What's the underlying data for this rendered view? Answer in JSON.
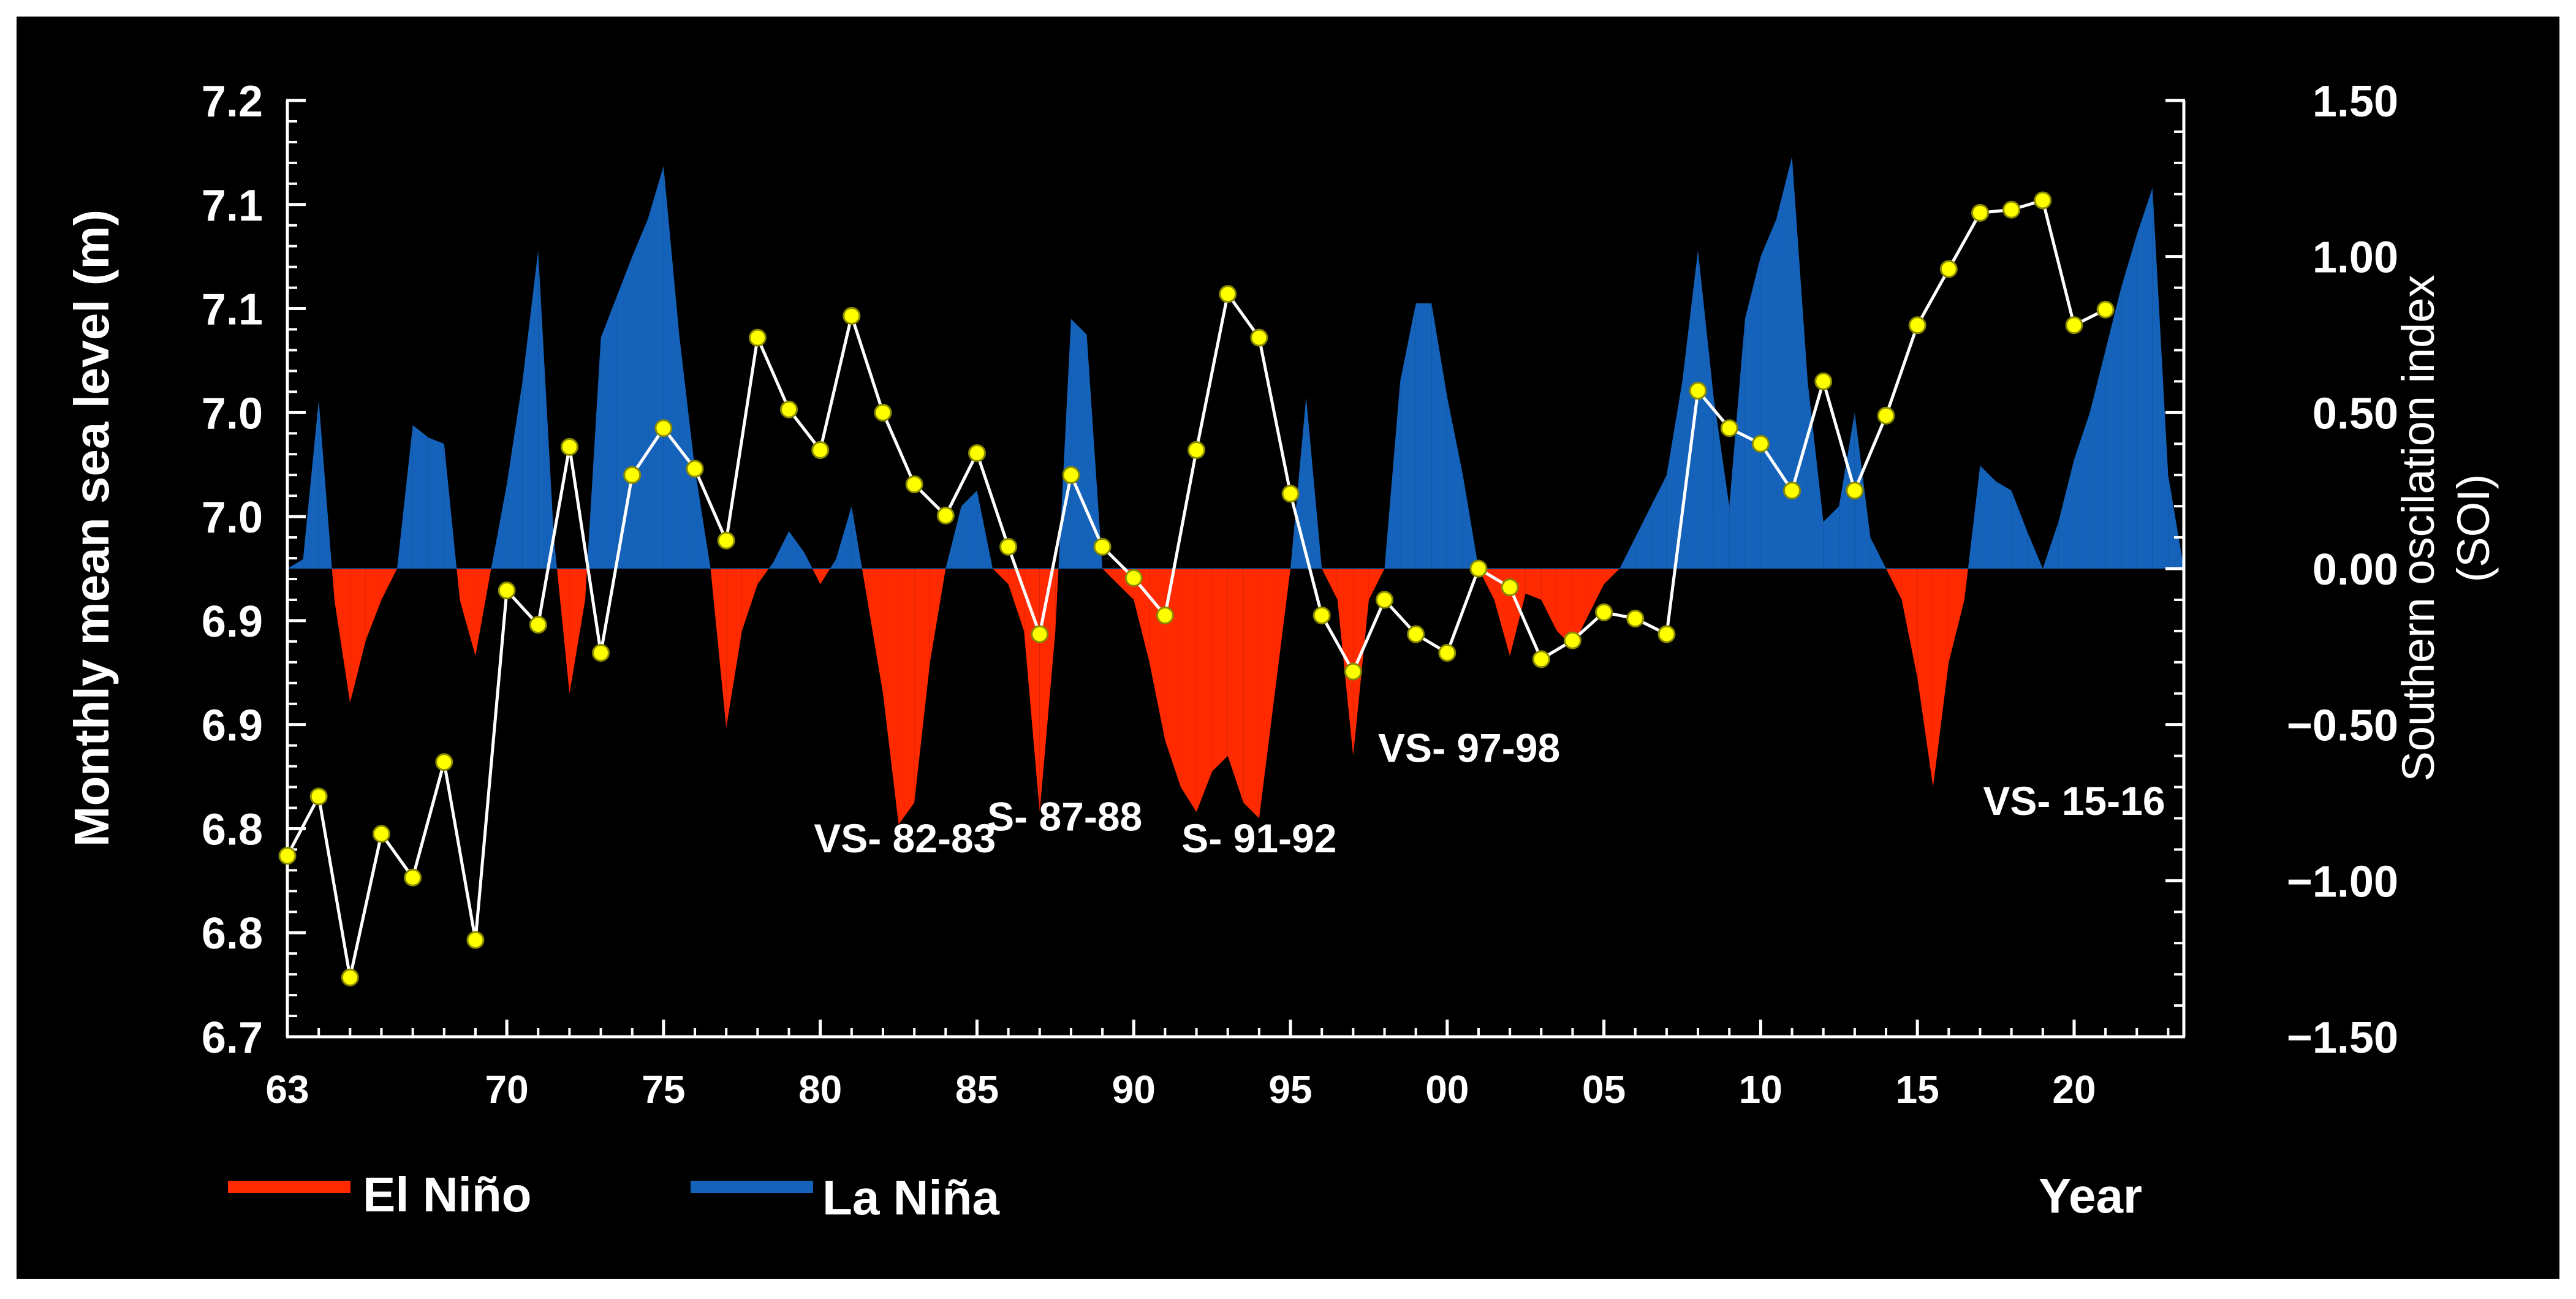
{
  "chart_data": {
    "type": "line+area",
    "title": "",
    "left_axis": {
      "label": "Monthly  mean sea level  (m)",
      "tick_labels": [
        "7.2",
        "7.1",
        "7.1",
        "7.0",
        "7.0",
        "6.9",
        "6.9",
        "6.8",
        "6.8",
        "6.7"
      ]
    },
    "right_axis": {
      "label_lines": [
        "Southern oscilation index",
        "(SOI)"
      ],
      "tick_labels": [
        "1.50",
        "1.00",
        "0.50",
        "0.00",
        "−0.50",
        "−1.00",
        "−1.50"
      ],
      "range": [
        -1.5,
        1.5
      ]
    },
    "x_axis": {
      "label": "Year",
      "range": [
        1963,
        2023.5
      ],
      "ticks": [
        {
          "year": 1963,
          "label": "63"
        },
        {
          "year": 1970,
          "label": "70"
        },
        {
          "year": 1975,
          "label": "75"
        },
        {
          "year": 1980,
          "label": "80"
        },
        {
          "year": 1985,
          "label": "85"
        },
        {
          "year": 1990,
          "label": "90"
        },
        {
          "year": 1995,
          "label": "95"
        },
        {
          "year": 2000,
          "label": "00"
        },
        {
          "year": 2005,
          "label": "05"
        },
        {
          "year": 2010,
          "label": "10"
        },
        {
          "year": 2015,
          "label": "15"
        },
        {
          "year": 2020,
          "label": "20"
        }
      ]
    },
    "sea_level_series": {
      "name": "Monthly mean sea level",
      "units": "SOI-scaled position",
      "points": [
        [
          1963,
          -0.92
        ],
        [
          1964,
          -0.73
        ],
        [
          1965,
          -1.31
        ],
        [
          1966,
          -0.85
        ],
        [
          1967,
          -0.99
        ],
        [
          1968,
          -0.62
        ],
        [
          1969,
          -1.19
        ],
        [
          1970,
          -0.07
        ],
        [
          1971,
          -0.18
        ],
        [
          1972,
          0.39
        ],
        [
          1973,
          -0.27
        ],
        [
          1974,
          0.3
        ],
        [
          1975,
          0.45
        ],
        [
          1976,
          0.32
        ],
        [
          1977,
          0.09
        ],
        [
          1978,
          0.74
        ],
        [
          1979,
          0.51
        ],
        [
          1980,
          0.38
        ],
        [
          1981,
          0.81
        ],
        [
          1982,
          0.5
        ],
        [
          1983,
          0.27
        ],
        [
          1984,
          0.17
        ],
        [
          1985,
          0.37
        ],
        [
          1986,
          0.07
        ],
        [
          1987,
          -0.21
        ],
        [
          1988,
          0.3
        ],
        [
          1989,
          0.07
        ],
        [
          1990,
          -0.03
        ],
        [
          1991,
          -0.15
        ],
        [
          1992,
          0.38
        ],
        [
          1993,
          0.88
        ],
        [
          1994,
          0.74
        ],
        [
          1995,
          0.24
        ],
        [
          1996,
          -0.15
        ],
        [
          1997,
          -0.33
        ],
        [
          1998,
          -0.1
        ],
        [
          1999,
          -0.21
        ],
        [
          2000,
          -0.27
        ],
        [
          2001,
          0.0
        ],
        [
          2002,
          -0.06
        ],
        [
          2003,
          -0.29
        ],
        [
          2004,
          -0.23
        ],
        [
          2005,
          -0.14
        ],
        [
          2006,
          -0.16
        ],
        [
          2007,
          -0.21
        ],
        [
          2008,
          0.57
        ],
        [
          2009,
          0.45
        ],
        [
          2010,
          0.4
        ],
        [
          2011,
          0.25
        ],
        [
          2012,
          0.6
        ],
        [
          2013,
          0.25
        ],
        [
          2014,
          0.49
        ],
        [
          2015,
          0.78
        ],
        [
          2016,
          0.96
        ],
        [
          2017,
          1.14
        ],
        [
          2018,
          1.15
        ],
        [
          2019,
          1.18
        ],
        [
          2020,
          0.78
        ],
        [
          2021,
          0.83
        ]
      ]
    },
    "soi_series": {
      "name": "SOI",
      "points": [
        [
          1963.0,
          0.0
        ],
        [
          1963.5,
          0.03
        ],
        [
          1964.0,
          0.54
        ],
        [
          1964.5,
          -0.1
        ],
        [
          1965.0,
          -0.43
        ],
        [
          1965.5,
          -0.23
        ],
        [
          1966.0,
          -0.1
        ],
        [
          1966.5,
          0.0
        ],
        [
          1967.0,
          0.46
        ],
        [
          1967.5,
          0.42
        ],
        [
          1968.0,
          0.4
        ],
        [
          1968.5,
          -0.1
        ],
        [
          1969.0,
          -0.28
        ],
        [
          1969.5,
          0.0
        ],
        [
          1970.0,
          0.27
        ],
        [
          1970.5,
          0.6
        ],
        [
          1971.0,
          1.02
        ],
        [
          1971.5,
          0.1
        ],
        [
          1972.0,
          -0.4
        ],
        [
          1972.5,
          -0.1
        ],
        [
          1973.0,
          0.74
        ],
        [
          1973.5,
          0.87
        ],
        [
          1974.0,
          1.0
        ],
        [
          1974.5,
          1.12
        ],
        [
          1975.0,
          1.29
        ],
        [
          1975.5,
          0.75
        ],
        [
          1976.0,
          0.32
        ],
        [
          1976.5,
          0.0
        ],
        [
          1977.0,
          -0.51
        ],
        [
          1977.5,
          -0.2
        ],
        [
          1978.0,
          -0.05
        ],
        [
          1978.5,
          0.02
        ],
        [
          1979.0,
          0.12
        ],
        [
          1979.5,
          0.05
        ],
        [
          1980.0,
          -0.05
        ],
        [
          1980.5,
          0.03
        ],
        [
          1981.0,
          0.2
        ],
        [
          1981.5,
          -0.1
        ],
        [
          1982.0,
          -0.4
        ],
        [
          1982.5,
          -0.82
        ],
        [
          1983.0,
          -0.75
        ],
        [
          1983.5,
          -0.3
        ],
        [
          1984.0,
          0.0
        ],
        [
          1984.5,
          0.2
        ],
        [
          1985.0,
          0.25
        ],
        [
          1985.5,
          0.0
        ],
        [
          1986.0,
          -0.05
        ],
        [
          1986.5,
          -0.2
        ],
        [
          1987.0,
          -0.78
        ],
        [
          1987.5,
          -0.2
        ],
        [
          1988.0,
          0.8
        ],
        [
          1988.5,
          0.75
        ],
        [
          1989.0,
          0.0
        ],
        [
          1989.5,
          -0.05
        ],
        [
          1990.0,
          -0.1
        ],
        [
          1990.5,
          -0.3
        ],
        [
          1991.0,
          -0.55
        ],
        [
          1991.5,
          -0.7
        ],
        [
          1992.0,
          -0.78
        ],
        [
          1992.5,
          -0.65
        ],
        [
          1993.0,
          -0.6
        ],
        [
          1993.5,
          -0.75
        ],
        [
          1994.0,
          -0.8
        ],
        [
          1994.5,
          -0.4
        ],
        [
          1995.0,
          0.0
        ],
        [
          1995.5,
          0.55
        ],
        [
          1996.0,
          0.0
        ],
        [
          1996.5,
          -0.1
        ],
        [
          1997.0,
          -0.6
        ],
        [
          1997.5,
          -0.1
        ],
        [
          1998.0,
          0.0
        ],
        [
          1998.5,
          0.6
        ],
        [
          1999.0,
          0.85
        ],
        [
          1999.5,
          0.85
        ],
        [
          2000.0,
          0.55
        ],
        [
          2000.5,
          0.3
        ],
        [
          2001.0,
          0.0
        ],
        [
          2001.5,
          -0.1
        ],
        [
          2002.0,
          -0.28
        ],
        [
          2002.5,
          -0.08
        ],
        [
          2003.0,
          -0.1
        ],
        [
          2003.5,
          -0.2
        ],
        [
          2004.0,
          -0.25
        ],
        [
          2004.5,
          -0.15
        ],
        [
          2005.0,
          -0.05
        ],
        [
          2005.5,
          0.0
        ],
        [
          2006.0,
          0.1
        ],
        [
          2006.5,
          0.2
        ],
        [
          2007.0,
          0.3
        ],
        [
          2007.5,
          0.6
        ],
        [
          2008.0,
          1.02
        ],
        [
          2008.5,
          0.55
        ],
        [
          2009.0,
          0.2
        ],
        [
          2009.5,
          0.8
        ],
        [
          2010.0,
          1.0
        ],
        [
          2010.5,
          1.12
        ],
        [
          2011.0,
          1.32
        ],
        [
          2011.5,
          0.6
        ],
        [
          2012.0,
          0.15
        ],
        [
          2012.5,
          0.2
        ],
        [
          2013.0,
          0.5
        ],
        [
          2013.5,
          0.1
        ],
        [
          2014.0,
          0.0
        ],
        [
          2014.5,
          -0.1
        ],
        [
          2015.0,
          -0.35
        ],
        [
          2015.5,
          -0.7
        ],
        [
          2016.0,
          -0.3
        ],
        [
          2016.5,
          -0.1
        ],
        [
          2017.0,
          0.33
        ],
        [
          2017.5,
          0.28
        ],
        [
          2018.0,
          0.25
        ],
        [
          2018.5,
          0.12
        ],
        [
          2019.0,
          0.0
        ],
        [
          2019.5,
          0.15
        ],
        [
          2020.0,
          0.35
        ],
        [
          2020.5,
          0.5
        ],
        [
          2021.0,
          0.7
        ],
        [
          2021.5,
          0.9
        ],
        [
          2022.0,
          1.07
        ],
        [
          2022.5,
          1.22
        ],
        [
          2023.0,
          0.3
        ],
        [
          2023.5,
          0.0
        ]
      ]
    },
    "annotations": [
      {
        "text": "VS- 82-83",
        "year": 1982.7,
        "soi": -0.87
      },
      {
        "text": "S- 87-88",
        "year": 1987.8,
        "soi": -0.8
      },
      {
        "text": "S- 91-92",
        "year": 1994.0,
        "soi": -0.87
      },
      {
        "text": "VS- 97-98",
        "year": 2000.7,
        "soi": -0.58
      },
      {
        "text": "VS- 15-16",
        "year": 2020.0,
        "soi": -0.75
      }
    ],
    "legend": [
      {
        "label": "El Niño",
        "color": "#ff2a00"
      },
      {
        "label": "La Niña",
        "color": "#1462b9"
      }
    ],
    "legend_position": "bottom-left",
    "colors": {
      "background": "#000000",
      "el_nino": "#ff2a00",
      "la_nina": "#1462b9",
      "line": "#ffffff",
      "marker": "#ffff00",
      "marker_stroke": "#8a8a00",
      "text": "#ffffff"
    }
  }
}
